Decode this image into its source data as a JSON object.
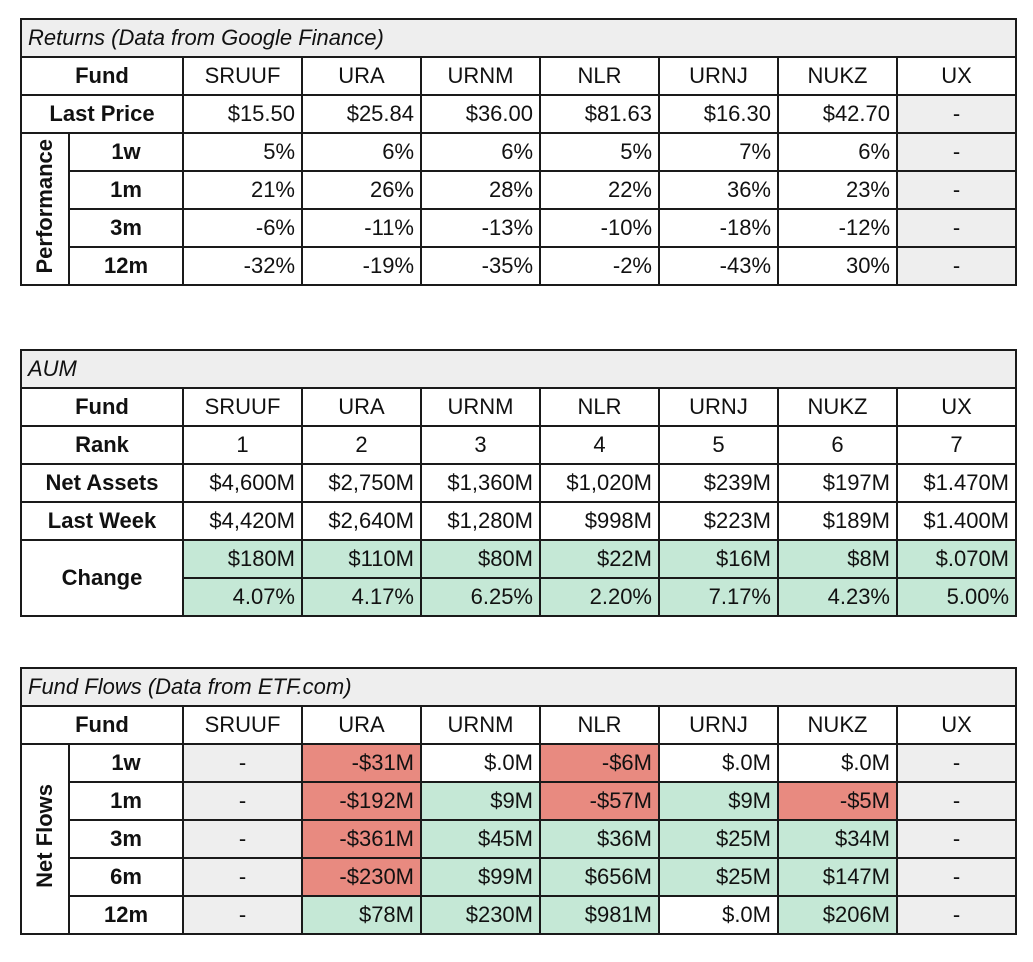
{
  "funds": [
    "SRUUF",
    "URA",
    "URNM",
    "NLR",
    "URNJ",
    "NUKZ",
    "UX"
  ],
  "returns": {
    "title": "Returns (Data from Google Finance)",
    "fund_label": "Fund",
    "last_price_label": "Last Price",
    "last_price": [
      "$15.50",
      "$25.84",
      "$36.00",
      "$81.63",
      "$16.30",
      "$42.70",
      "-"
    ],
    "group_label": "Performance",
    "periods": [
      {
        "label": "1w",
        "values": [
          "5%",
          "6%",
          "6%",
          "5%",
          "7%",
          "6%",
          "-"
        ]
      },
      {
        "label": "1m",
        "values": [
          "21%",
          "26%",
          "28%",
          "22%",
          "36%",
          "23%",
          "-"
        ]
      },
      {
        "label": "3m",
        "values": [
          "-6%",
          "-11%",
          "-13%",
          "-10%",
          "-18%",
          "-12%",
          "-"
        ]
      },
      {
        "label": "12m",
        "values": [
          "-32%",
          "-19%",
          "-35%",
          "-2%",
          "-43%",
          "30%",
          "-"
        ]
      }
    ]
  },
  "aum": {
    "title": "AUM",
    "fund_label": "Fund",
    "rank_label": "Rank",
    "rank": [
      "1",
      "2",
      "3",
      "4",
      "5",
      "6",
      "7"
    ],
    "net_assets_label": "Net Assets",
    "net_assets": [
      "$4,600M",
      "$2,750M",
      "$1,360M",
      "$1,020M",
      "$239M",
      "$197M",
      "$1.470M"
    ],
    "last_week_label": "Last Week",
    "last_week": [
      "$4,420M",
      "$2,640M",
      "$1,280M",
      "$998M",
      "$223M",
      "$189M",
      "$1.400M"
    ],
    "change_label": "Change",
    "change_abs": [
      "$180M",
      "$110M",
      "$80M",
      "$22M",
      "$16M",
      "$8M",
      "$.070M"
    ],
    "change_pct": [
      "4.07%",
      "4.17%",
      "6.25%",
      "2.20%",
      "7.17%",
      "4.23%",
      "5.00%"
    ]
  },
  "flows": {
    "title": "Fund Flows (Data from ETF.com)",
    "fund_label": "Fund",
    "group_label": "Net Flows",
    "periods": [
      {
        "label": "1w",
        "values": [
          "-",
          "-$31M",
          "$.0M",
          "-$6M",
          "$.0M",
          "$.0M",
          "-"
        ],
        "status": [
          "grey",
          "red",
          "white",
          "red",
          "white",
          "white",
          "grey"
        ]
      },
      {
        "label": "1m",
        "values": [
          "-",
          "-$192M",
          "$9M",
          "-$57M",
          "$9M",
          "-$5M",
          "-"
        ],
        "status": [
          "grey",
          "red",
          "green",
          "red",
          "green",
          "red",
          "grey"
        ]
      },
      {
        "label": "3m",
        "values": [
          "-",
          "-$361M",
          "$45M",
          "$36M",
          "$25M",
          "$34M",
          "-"
        ],
        "status": [
          "grey",
          "red",
          "green",
          "green",
          "green",
          "green",
          "grey"
        ]
      },
      {
        "label": "6m",
        "values": [
          "-",
          "-$230M",
          "$99M",
          "$656M",
          "$25M",
          "$147M",
          "-"
        ],
        "status": [
          "grey",
          "red",
          "green",
          "green",
          "green",
          "green",
          "grey"
        ]
      },
      {
        "label": "12m",
        "values": [
          "-",
          "$78M",
          "$230M",
          "$981M",
          "$.0M",
          "$206M",
          "-"
        ],
        "status": [
          "grey",
          "green",
          "green",
          "green",
          "white",
          "green",
          "grey"
        ]
      }
    ]
  }
}
